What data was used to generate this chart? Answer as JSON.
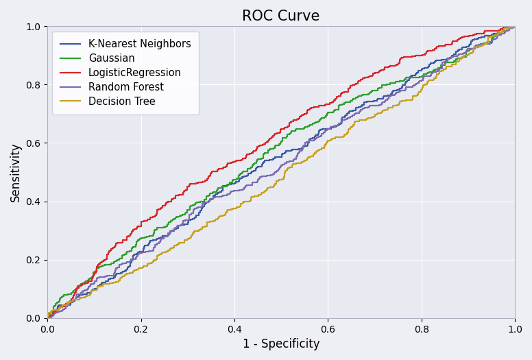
{
  "title": "ROC Curve",
  "xlabel": "1 - Specificity",
  "ylabel": "Sensitivity",
  "xlim": [
    0.0,
    1.0
  ],
  "ylim": [
    0.0,
    1.0
  ],
  "xticks": [
    0.0,
    0.2,
    0.4,
    0.6,
    0.8,
    1.0
  ],
  "yticks": [
    0.0,
    0.2,
    0.4,
    0.6,
    0.8,
    1.0
  ],
  "figure_facecolor": "#eeeef5",
  "axes_facecolor": "#e8eaf2",
  "grid_color": "white",
  "curves": [
    {
      "label": "K-Nearest Neighbors",
      "color": "#3a5a9f",
      "linewidth": 1.6,
      "auc": 0.56,
      "seed": 42,
      "n_steps": 300
    },
    {
      "label": "Gaussian",
      "color": "#2ca02c",
      "linewidth": 1.6,
      "auc": 0.62,
      "seed": 7,
      "n_steps": 250
    },
    {
      "label": "LogisticRegression",
      "color": "#d62728",
      "linewidth": 1.6,
      "auc": 0.68,
      "seed": 13,
      "n_steps": 400
    },
    {
      "label": "Random Forest",
      "color": "#7b6bb0",
      "linewidth": 1.6,
      "auc": 0.54,
      "seed": 99,
      "n_steps": 200
    },
    {
      "label": "Decision Tree",
      "color": "#c8a020",
      "linewidth": 1.6,
      "auc": 0.52,
      "seed": 55,
      "n_steps": 200
    }
  ],
  "legend_loc": "upper left",
  "title_fontsize": 15,
  "label_fontsize": 12,
  "tick_fontsize": 10
}
